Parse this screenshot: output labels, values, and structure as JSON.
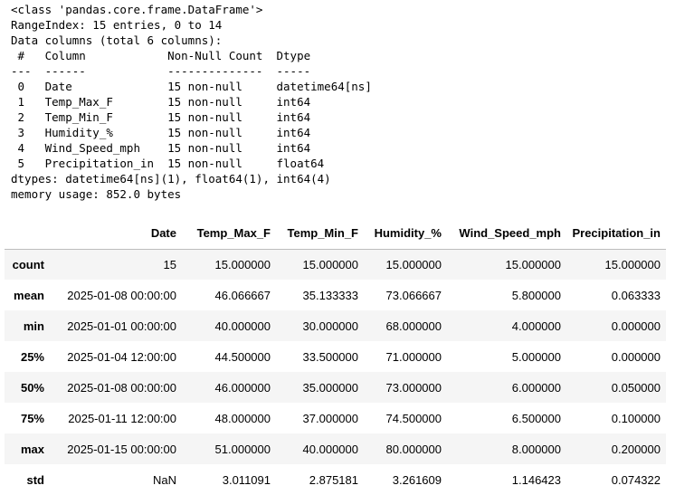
{
  "info": {
    "lines": [
      "<class 'pandas.core.frame.DataFrame'>",
      "RangeIndex: 15 entries, 0 to 14",
      "Data columns (total 6 columns):",
      " #   Column            Non-Null Count  Dtype",
      "---  ------            --------------  -----",
      " 0   Date              15 non-null     datetime64[ns]",
      " 1   Temp_Max_F        15 non-null     int64",
      " 2   Temp_Min_F        15 non-null     int64",
      " 3   Humidity_%        15 non-null     int64",
      " 4   Wind_Speed_mph    15 non-null     int64",
      " 5   Precipitation_in  15 non-null     float64",
      "dtypes: datetime64[ns](1), float64(1), int64(4)",
      "memory usage: 852.0 bytes"
    ]
  },
  "describe": {
    "columns": [
      "",
      "Date",
      "Temp_Max_F",
      "Temp_Min_F",
      "Humidity_%",
      "Wind_Speed_mph",
      "Precipitation_in"
    ],
    "rows": [
      {
        "label": "count",
        "values": [
          "15",
          "15.000000",
          "15.000000",
          "15.000000",
          "15.000000",
          "15.000000"
        ]
      },
      {
        "label": "mean",
        "values": [
          "2025-01-08 00:00:00",
          "46.066667",
          "35.133333",
          "73.066667",
          "5.800000",
          "0.063333"
        ]
      },
      {
        "label": "min",
        "values": [
          "2025-01-01 00:00:00",
          "40.000000",
          "30.000000",
          "68.000000",
          "4.000000",
          "0.000000"
        ]
      },
      {
        "label": "25%",
        "values": [
          "2025-01-04 12:00:00",
          "44.500000",
          "33.500000",
          "71.000000",
          "5.000000",
          "0.000000"
        ]
      },
      {
        "label": "50%",
        "values": [
          "2025-01-08 00:00:00",
          "46.000000",
          "35.000000",
          "73.000000",
          "6.000000",
          "0.050000"
        ]
      },
      {
        "label": "75%",
        "values": [
          "2025-01-11 12:00:00",
          "48.000000",
          "37.000000",
          "74.500000",
          "6.500000",
          "0.100000"
        ]
      },
      {
        "label": "max",
        "values": [
          "2025-01-15 00:00:00",
          "51.000000",
          "40.000000",
          "80.000000",
          "8.000000",
          "0.200000"
        ]
      },
      {
        "label": "std",
        "values": [
          "NaN",
          "3.011091",
          "2.875181",
          "3.261609",
          "1.146423",
          "0.074322"
        ]
      }
    ]
  }
}
